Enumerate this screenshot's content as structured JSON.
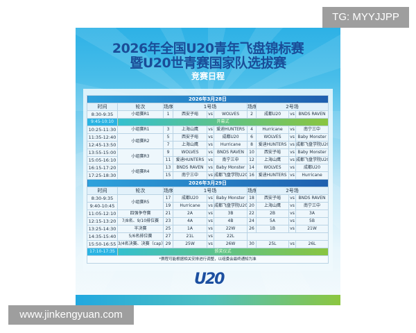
{
  "poster": {
    "title_line1": "2026年全国U20青年飞盘锦标赛",
    "title_line2": "暨U20世青赛国家队选拔赛",
    "subtitle": "竞赛日程",
    "logo_text": "U20",
    "note": "*赛程可能根据相关安排进行调整，以组委会最终通知为准"
  },
  "columns": {
    "time": "时间",
    "round": "轮次",
    "seq": "场序",
    "field1": "1号场",
    "field2": "2号场"
  },
  "vs": "vs",
  "days": [
    {
      "date": "2026年3月28日",
      "rows": [
        {
          "time": "8:30-9:35",
          "round": "小组赛R1",
          "n1": "1",
          "a1": "西安子峪",
          "b1": "WOLVES",
          "n2": "2",
          "a2": "成都U20",
          "b2": "BNDS RAVEN"
        },
        {
          "ceremony": true,
          "time": "9:45-10:10",
          "label": "开幕式"
        },
        {
          "time": "10:25-11:30",
          "round": "小组赛R1",
          "n1": "3",
          "a1": "上海山鹰",
          "b1": "爱迪HUNTERS",
          "n2": "4",
          "a2": "Hurricane",
          "b2": "南宁三中"
        },
        {
          "time": "11:35-12:40",
          "round": "小组赛R2",
          "n1": "5",
          "a1": "西安子峪",
          "b1": "成都U20",
          "n2": "6",
          "a2": "WOLVES",
          "b2": "Baby Monster"
        },
        {
          "time": "12:45-13:50",
          "round": "小组赛R2",
          "n1": "7",
          "a1": "上海山鹰",
          "b1": "Hurricane",
          "n2": "8",
          "a2": "爱迪HUNTERS",
          "b2": "成都飞盘学院U20"
        },
        {
          "time": "13:55-15:00",
          "round": "小组赛R3",
          "n1": "9",
          "a1": "WOLVES",
          "b1": "BNDS RAVEN",
          "n2": "10",
          "a2": "西安子峪",
          "b2": "Baby Monster"
        },
        {
          "time": "15:05-16:10",
          "round": "小组赛R3",
          "n1": "11",
          "a1": "爱迪HUNTERS",
          "b1": "南宁三中",
          "n2": "12",
          "a2": "上海山鹰",
          "b2": "成都飞盘学院U20"
        },
        {
          "time": "16:15-17:20",
          "round": "小组赛R4",
          "n1": "13",
          "a1": "BNDS RAVEN",
          "b1": "Baby Monster",
          "n2": "14",
          "a2": "WOLVES",
          "b2": "成都U20"
        },
        {
          "time": "17:25-18:30",
          "round": "小组赛R4",
          "n1": "15",
          "a1": "南宁三中",
          "b1": "成都飞盘学院U20",
          "n2": "16",
          "a2": "爱迪HUNTERS",
          "b2": "Hurricane"
        }
      ]
    },
    {
      "date": "2026年3月29日",
      "rows": [
        {
          "time": "8:30-9:35",
          "round": "小组赛R5",
          "n1": "17",
          "a1": "成都U20",
          "b1": "Baby Monster",
          "n2": "18",
          "a2": "西安子峪",
          "b2": "BNDS RAVEN"
        },
        {
          "time": "9:40-10:45",
          "round": "小组赛R5",
          "n1": "19",
          "a1": "Hurricane",
          "b1": "成都飞盘学院U20",
          "n2": "20",
          "a2": "上海山鹰",
          "b2": "南宁三中"
        },
        {
          "time": "11:05-12:10",
          "round": "四强争夺赛",
          "n1": "21",
          "a1": "2A",
          "b1": "3B",
          "n2": "22",
          "a2": "2B",
          "b2": "3A"
        },
        {
          "time": "12:15-13:20",
          "round": "7/8名、9/10排位赛",
          "n1": "23",
          "a1": "4A",
          "b1": "4B",
          "n2": "24",
          "a2": "5A",
          "b2": "5B"
        },
        {
          "time": "13:25-14:30",
          "round": "半决赛",
          "n1": "25",
          "a1": "1A",
          "b1": "22W",
          "n2": "26",
          "a2": "1B",
          "b2": "21W"
        },
        {
          "time": "14:35-15:40",
          "round": "5/6名排位赛",
          "n1": "27",
          "a1": "21L",
          "b1": "22L"
        },
        {
          "time": "15:50-16:55",
          "round": "3/4名决赛、决赛（cap）",
          "n1": "29",
          "a1": "25W",
          "b1": "26W",
          "n2": "30",
          "a2": "25L",
          "b2": "26L"
        },
        {
          "ceremony": true,
          "time": "17:10-17:35",
          "label": "颁奖仪式"
        }
      ]
    }
  ],
  "watermarks": {
    "top_right": "TG: MYYJJPP",
    "bottom_left": "www.jinkengyuan.com"
  },
  "colors": {
    "title": "#1a4d98",
    "poster_blue": "#2db1e6",
    "date_bar": "#1f5fae",
    "ceremony_green": "#8ac540",
    "ceremony_time": "#2ab3e2"
  }
}
